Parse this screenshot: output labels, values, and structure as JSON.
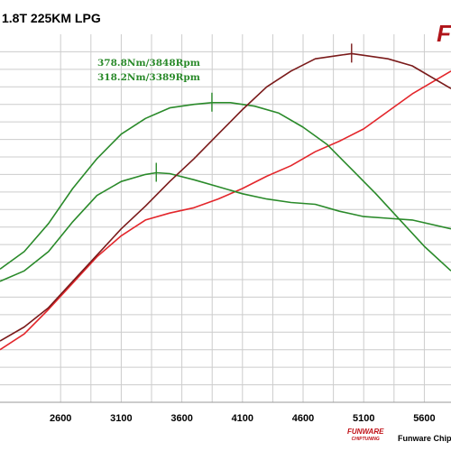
{
  "header": {
    "title": "1.8T 225KM LPG",
    "logo_text": "F"
  },
  "footer": {
    "brand": "FUNWARE",
    "brand_sub": "CHIPTUNING",
    "company": "Funware Chip"
  },
  "colors": {
    "torque": "#2a8a2a",
    "torque_stock": "#2a8a2a",
    "power": "#7a1a1a",
    "power_stock": "#e3262b",
    "grid": "#cccccc"
  },
  "chart_data": {
    "type": "line",
    "xlabel": "",
    "ylabel": "",
    "x_ticks": [
      2600,
      3100,
      3600,
      4100,
      4600,
      5100,
      5600
    ],
    "xlim": [
      2100,
      5820
    ],
    "ylim": [
      0,
      21
    ],
    "grid": true,
    "annotations": [
      {
        "text": "378.8Nm/3848Rpm",
        "x": 3848,
        "y": 17.1,
        "series": "torque"
      },
      {
        "text": "318.2Nm/3389Rpm",
        "x": 3389,
        "y": 13.1,
        "series": "torque_stock"
      }
    ],
    "series": [
      {
        "key": "torque",
        "x": [
          2100,
          2300,
          2500,
          2700,
          2900,
          3100,
          3300,
          3500,
          3700,
          3848,
          4000,
          4200,
          4400,
          4600,
          4800,
          5000,
          5200,
          5400,
          5600,
          5820
        ],
        "y": [
          7.6,
          8.6,
          10.2,
          12.2,
          13.9,
          15.3,
          16.2,
          16.8,
          17.0,
          17.1,
          17.1,
          16.9,
          16.5,
          15.7,
          14.7,
          13.3,
          11.9,
          10.4,
          8.9,
          7.5
        ]
      },
      {
        "key": "torque_stock",
        "x": [
          2100,
          2300,
          2500,
          2700,
          2900,
          3100,
          3300,
          3389,
          3500,
          3700,
          3900,
          4100,
          4300,
          4500,
          4700,
          4900,
          5100,
          5300,
          5500,
          5820
        ],
        "y": [
          6.9,
          7.5,
          8.6,
          10.3,
          11.8,
          12.6,
          13.0,
          13.1,
          13.05,
          12.7,
          12.3,
          11.9,
          11.6,
          11.4,
          11.3,
          10.9,
          10.6,
          10.5,
          10.4,
          9.9
        ]
      },
      {
        "key": "power",
        "x": [
          2100,
          2300,
          2500,
          2700,
          2900,
          3100,
          3300,
          3500,
          3700,
          3900,
          4100,
          4300,
          4500,
          4700,
          4900,
          5000,
          5100,
          5300,
          5500,
          5820
        ],
        "y": [
          3.5,
          4.3,
          5.4,
          6.9,
          8.4,
          9.9,
          11.2,
          12.6,
          13.9,
          15.3,
          16.7,
          18.0,
          18.9,
          19.6,
          19.8,
          19.9,
          19.8,
          19.6,
          19.2,
          17.9
        ]
      },
      {
        "key": "power_stock",
        "x": [
          2100,
          2300,
          2500,
          2700,
          2900,
          3100,
          3300,
          3500,
          3700,
          3900,
          4100,
          4300,
          4500,
          4700,
          4900,
          5100,
          5300,
          5500,
          5820
        ],
        "y": [
          3.0,
          3.9,
          5.3,
          6.8,
          8.3,
          9.5,
          10.4,
          10.8,
          11.1,
          11.6,
          12.2,
          12.9,
          13.5,
          14.3,
          14.9,
          15.6,
          16.6,
          17.6,
          18.9
        ]
      }
    ]
  }
}
